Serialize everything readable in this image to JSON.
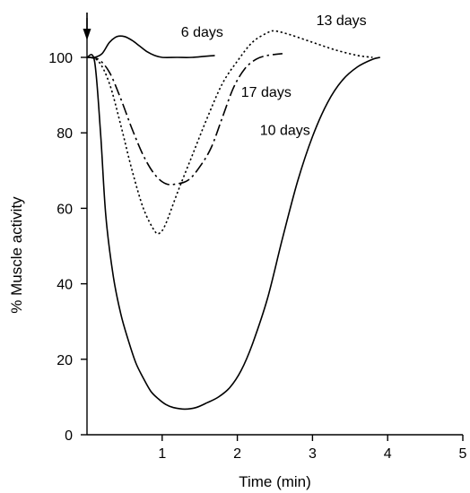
{
  "chart_data": {
    "type": "line",
    "xlabel": "Time (min)",
    "ylabel": "% Muscle activity",
    "xlim": [
      0,
      5
    ],
    "ylim": [
      0,
      100
    ],
    "xticks": [
      1,
      2,
      3,
      4,
      5
    ],
    "yticks": [
      0,
      20,
      40,
      60,
      80,
      100
    ],
    "grid": false,
    "annotations": [
      {
        "type": "arrow",
        "x": 0,
        "direction": "down"
      }
    ],
    "series": [
      {
        "name": "6 days",
        "style": "solid",
        "x": [
          0,
          0.1,
          0.2,
          0.3,
          0.4,
          0.5,
          0.6,
          0.7,
          0.8,
          0.9,
          1.0,
          1.2,
          1.4,
          1.7
        ],
        "y": [
          100,
          100,
          101,
          104,
          105.5,
          105.5,
          104.5,
          103,
          101.5,
          100.5,
          100,
          100,
          100,
          100.5
        ]
      },
      {
        "name": "13 days",
        "style": "dotted",
        "x": [
          0,
          0.15,
          0.3,
          0.45,
          0.6,
          0.75,
          0.9,
          0.97,
          1.05,
          1.2,
          1.4,
          1.6,
          1.8,
          2.0,
          2.2,
          2.4,
          2.5,
          2.7,
          3.0,
          3.3,
          3.6,
          3.8
        ],
        "y": [
          100,
          99,
          93,
          82,
          70,
          60,
          54,
          53.5,
          56,
          64,
          74,
          84,
          93,
          99,
          104,
          106.5,
          107,
          106,
          104,
          102,
          100.5,
          100
        ]
      },
      {
        "name": "17 days",
        "style": "dash-dot",
        "x": [
          0,
          0.15,
          0.3,
          0.45,
          0.6,
          0.75,
          0.9,
          1.05,
          1.2,
          1.35,
          1.5,
          1.65,
          1.8,
          1.95,
          2.1,
          2.25,
          2.4,
          2.6
        ],
        "y": [
          100,
          99.5,
          96,
          89,
          81,
          74,
          69,
          66.5,
          66.5,
          67.5,
          71,
          76,
          84,
          92,
          97,
          99.5,
          100.5,
          101
        ]
      },
      {
        "name": "10 days",
        "style": "solid",
        "x": [
          0,
          0.1,
          0.18,
          0.25,
          0.35,
          0.45,
          0.55,
          0.65,
          0.75,
          0.85,
          0.95,
          1.05,
          1.15,
          1.3,
          1.45,
          1.6,
          1.75,
          1.9,
          2.05,
          2.2,
          2.4,
          2.6,
          2.8,
          3.0,
          3.2,
          3.4,
          3.6,
          3.8,
          3.9
        ],
        "y": [
          100,
          99,
          80,
          58,
          42,
          32,
          25,
          19,
          15,
          11.5,
          9.5,
          8,
          7.2,
          6.8,
          7.2,
          8.5,
          10,
          12.5,
          17,
          24,
          36,
          52,
          67,
          79,
          88,
          94,
          97.5,
          99.5,
          100
        ]
      }
    ],
    "labels": [
      {
        "series": "6 days",
        "text": "6 days",
        "x": 1.25,
        "y": 105.5
      },
      {
        "series": "13 days",
        "text": "13 days",
        "x": 3.05,
        "y": 108.5
      },
      {
        "series": "17 days",
        "text": "17 days",
        "x": 2.05,
        "y": 89.5
      },
      {
        "series": "10 days",
        "text": "10 days",
        "x": 2.3,
        "y": 79.5
      }
    ]
  }
}
